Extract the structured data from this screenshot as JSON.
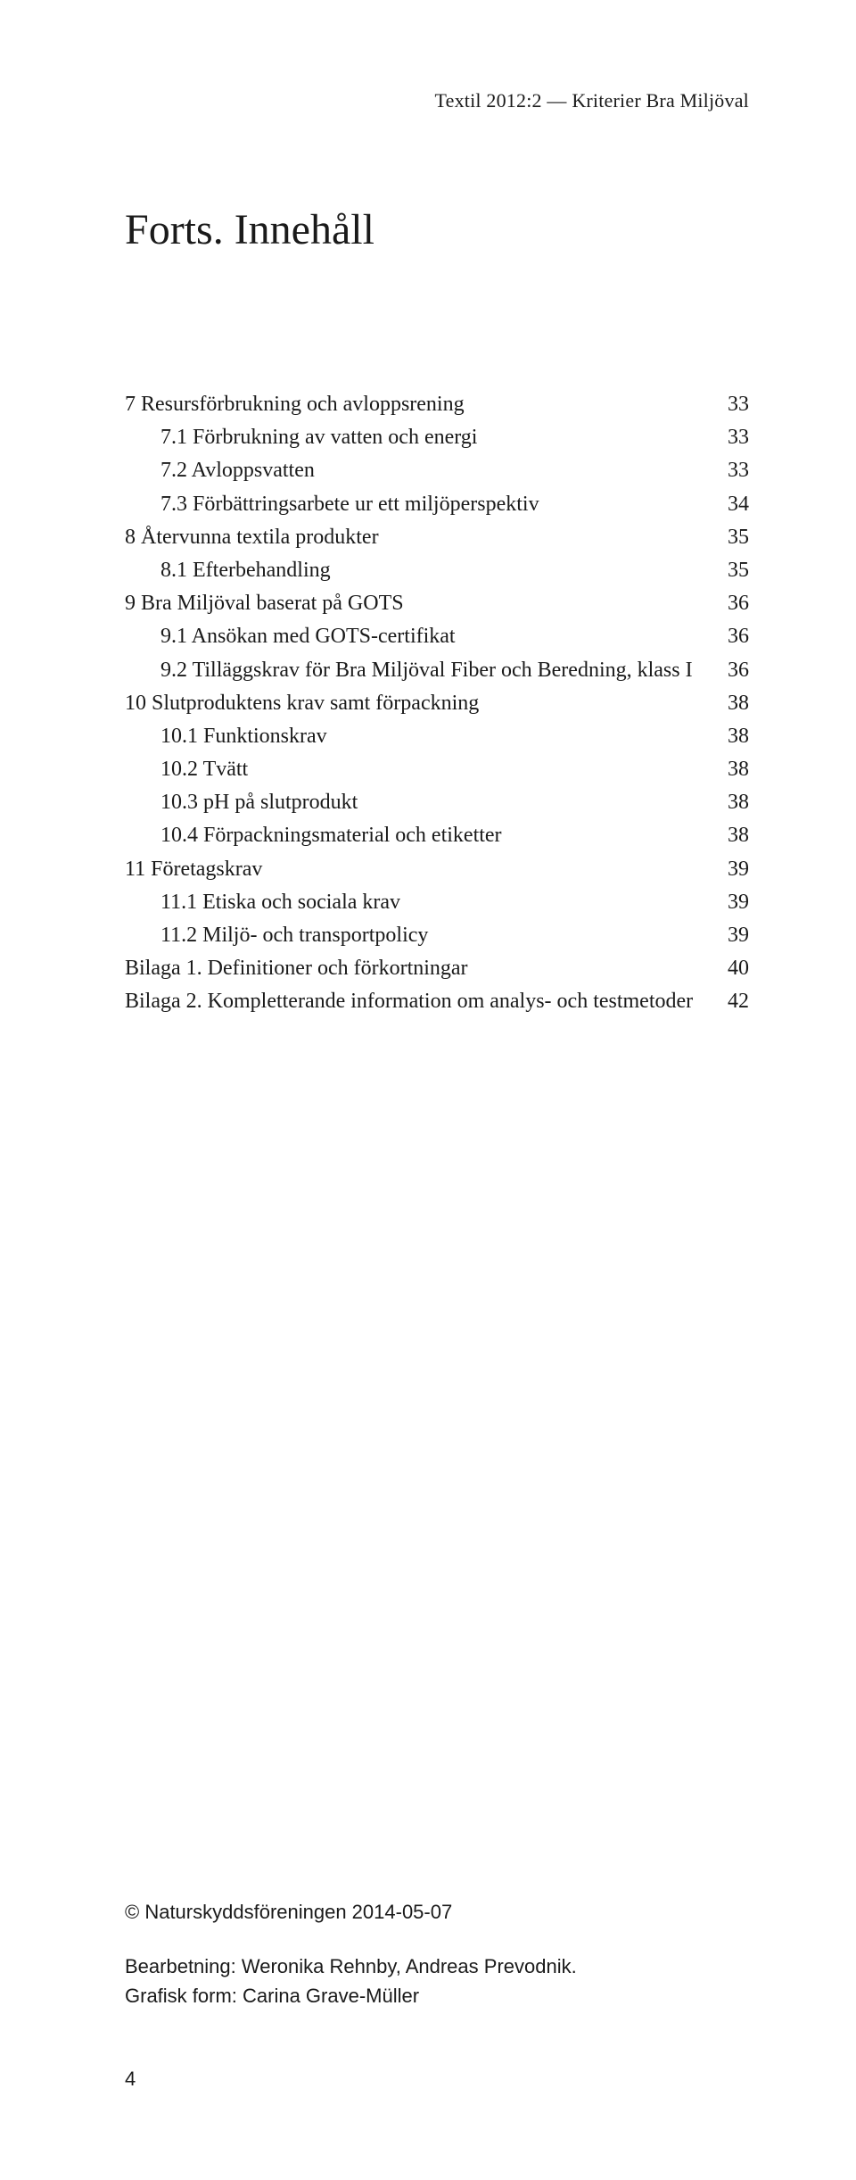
{
  "running_head": "Textil 2012:2 — Kriterier Bra Miljöval",
  "title": "Forts. Innehåll",
  "toc": [
    {
      "label": "7 Resursförbrukning och avloppsrening",
      "page": "33",
      "indent": 0
    },
    {
      "label": "7.1 Förbrukning av vatten och energi",
      "page": "33",
      "indent": 1
    },
    {
      "label": "7.2 Avloppsvatten",
      "page": "33",
      "indent": 1
    },
    {
      "label": "7.3 Förbättringsarbete ur ett miljöperspektiv",
      "page": "34",
      "indent": 1
    },
    {
      "label": "8 Återvunna textila produkter",
      "page": "35",
      "indent": 0
    },
    {
      "label": "8.1 Efterbehandling",
      "page": "35",
      "indent": 1
    },
    {
      "label": "9 Bra Miljöval baserat på GOTS",
      "page": "36",
      "indent": 0
    },
    {
      "label": "9.1 Ansökan med GOTS-certifikat",
      "page": "36",
      "indent": 1
    },
    {
      "label": "9.2 Tilläggskrav för Bra Miljöval Fiber och Beredning, klass I",
      "page": "36",
      "indent": 1
    },
    {
      "label": "10 Slutproduktens krav samt förpackning",
      "page": "38",
      "indent": 0
    },
    {
      "label": "10.1 Funktionskrav",
      "page": "38",
      "indent": 1
    },
    {
      "label": "10.2 Tvätt",
      "page": "38",
      "indent": 1
    },
    {
      "label": "10.3 pH på slutprodukt",
      "page": "38",
      "indent": 1
    },
    {
      "label": "10.4 Förpackningsmaterial och etiketter",
      "page": "38",
      "indent": 1
    },
    {
      "label": "11 Företagskrav",
      "page": "39",
      "indent": 0
    },
    {
      "label": "11.1 Etiska och sociala krav",
      "page": "39",
      "indent": 1
    },
    {
      "label": "11.2 Miljö- och transportpolicy",
      "page": "39",
      "indent": 1
    },
    {
      "label": "Bilaga 1. Definitioner och förkortningar",
      "page": "40",
      "indent": 0
    },
    {
      "label": "Bilaga 2. Kompletterande information om analys- och testmetoder",
      "page": "42",
      "indent": 0
    }
  ],
  "colophon": {
    "line1": "© Naturskyddsföreningen 2014-05-07",
    "line2": "Bearbetning: Weronika Rehnby, Andreas Prevodnik.",
    "line3": "Grafisk form: Carina Grave-Müller"
  },
  "page_number": "4"
}
